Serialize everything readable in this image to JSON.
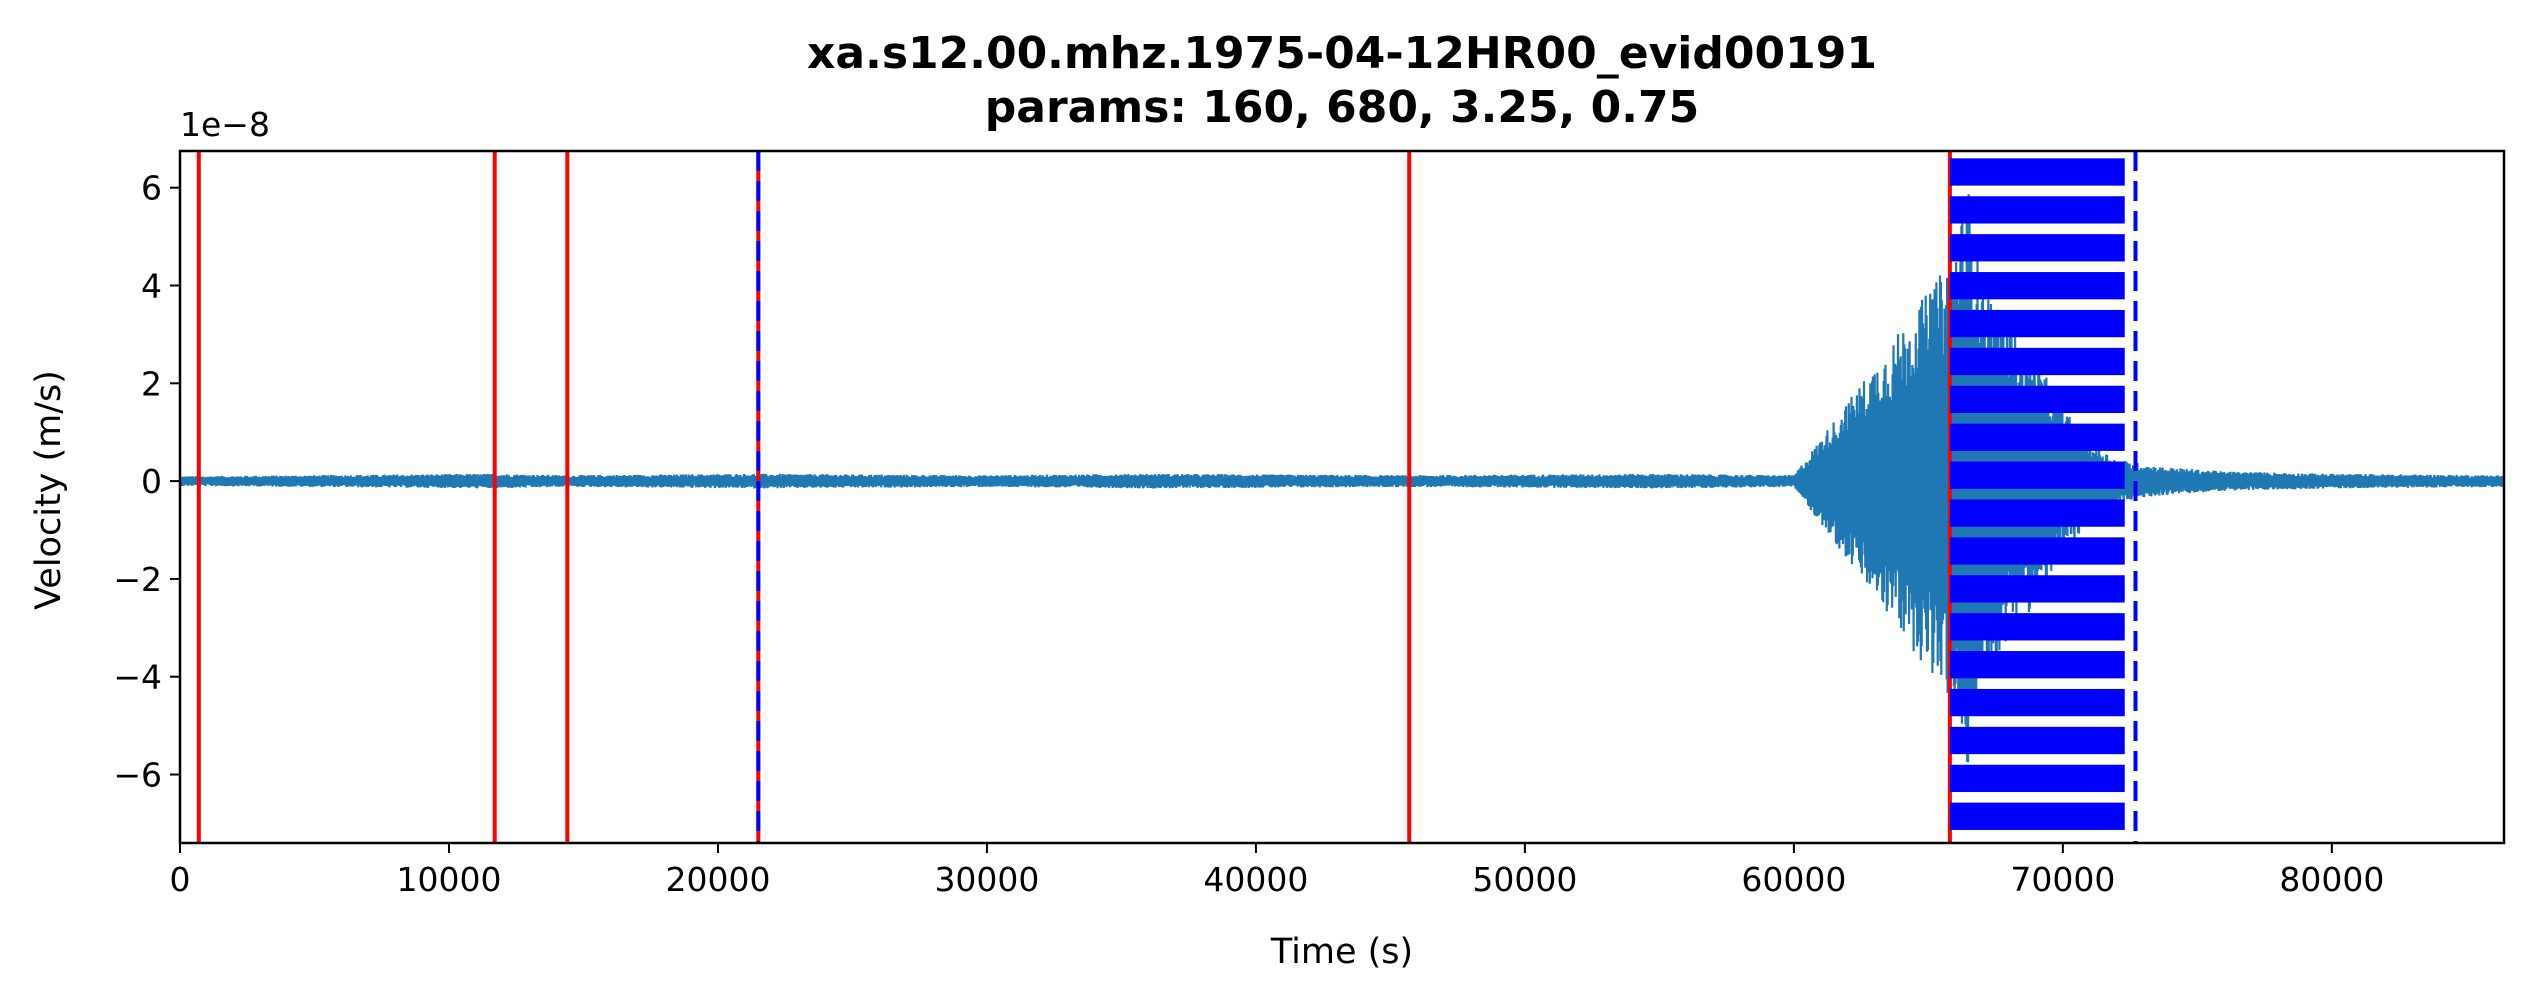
{
  "chart_data": {
    "type": "line",
    "title": "xa.s12.00.mhz.1975-04-12HR00_evid00191",
    "subtitle": "params: 160, 680, 3.25, 0.75",
    "xlabel": "Time (s)",
    "ylabel": "Velocity (m/s)",
    "y_offset_label": "1e−8",
    "xlim": [
      0,
      86400
    ],
    "ylim": [
      -7.4,
      6.75
    ],
    "x_ticks": [
      0,
      10000,
      20000,
      30000,
      40000,
      50000,
      60000,
      70000,
      80000
    ],
    "x_tick_labels": [
      "0",
      "10000",
      "20000",
      "30000",
      "40000",
      "50000",
      "60000",
      "70000",
      "80000"
    ],
    "y_ticks": [
      -6,
      -4,
      -2,
      0,
      2,
      4,
      6
    ],
    "y_tick_labels": [
      "−6",
      "−4",
      "−2",
      "0",
      "2",
      "4",
      "6"
    ],
    "grid": false,
    "legend": "none",
    "colors": {
      "trace": "#1f77b4",
      "trigger_on": "#ff0000",
      "trigger_off": "#0000ff"
    },
    "series": [
      {
        "values_description_x": [
          0,
          5000,
          11700,
          14400,
          21500,
          30000,
          36000,
          45700,
          55000,
          60000,
          65800,
          66500,
          67000,
          68000,
          69000,
          70000,
          71000,
          72000,
          73500,
          76000,
          80000,
          86400
        ],
        "amplitude": [
          0.1,
          0.12,
          0.15,
          0.12,
          0.15,
          0.12,
          0.15,
          0.12,
          0.15,
          0.12,
          4.5,
          6.0,
          4.2,
          3.2,
          2.5,
          1.5,
          0.8,
          0.45,
          0.3,
          0.2,
          0.15,
          0.12
        ]
      }
    ],
    "red_lines_x": [
      700,
      11700,
      14400,
      21500,
      45700,
      65800
    ],
    "blue_dashed_lines_x": [
      21500,
      72700
    ],
    "blue_block": {
      "x_start": 65800,
      "x_end": 72300,
      "y_min": -7.35,
      "y_max": 6.6,
      "stripe_count": 18
    }
  }
}
